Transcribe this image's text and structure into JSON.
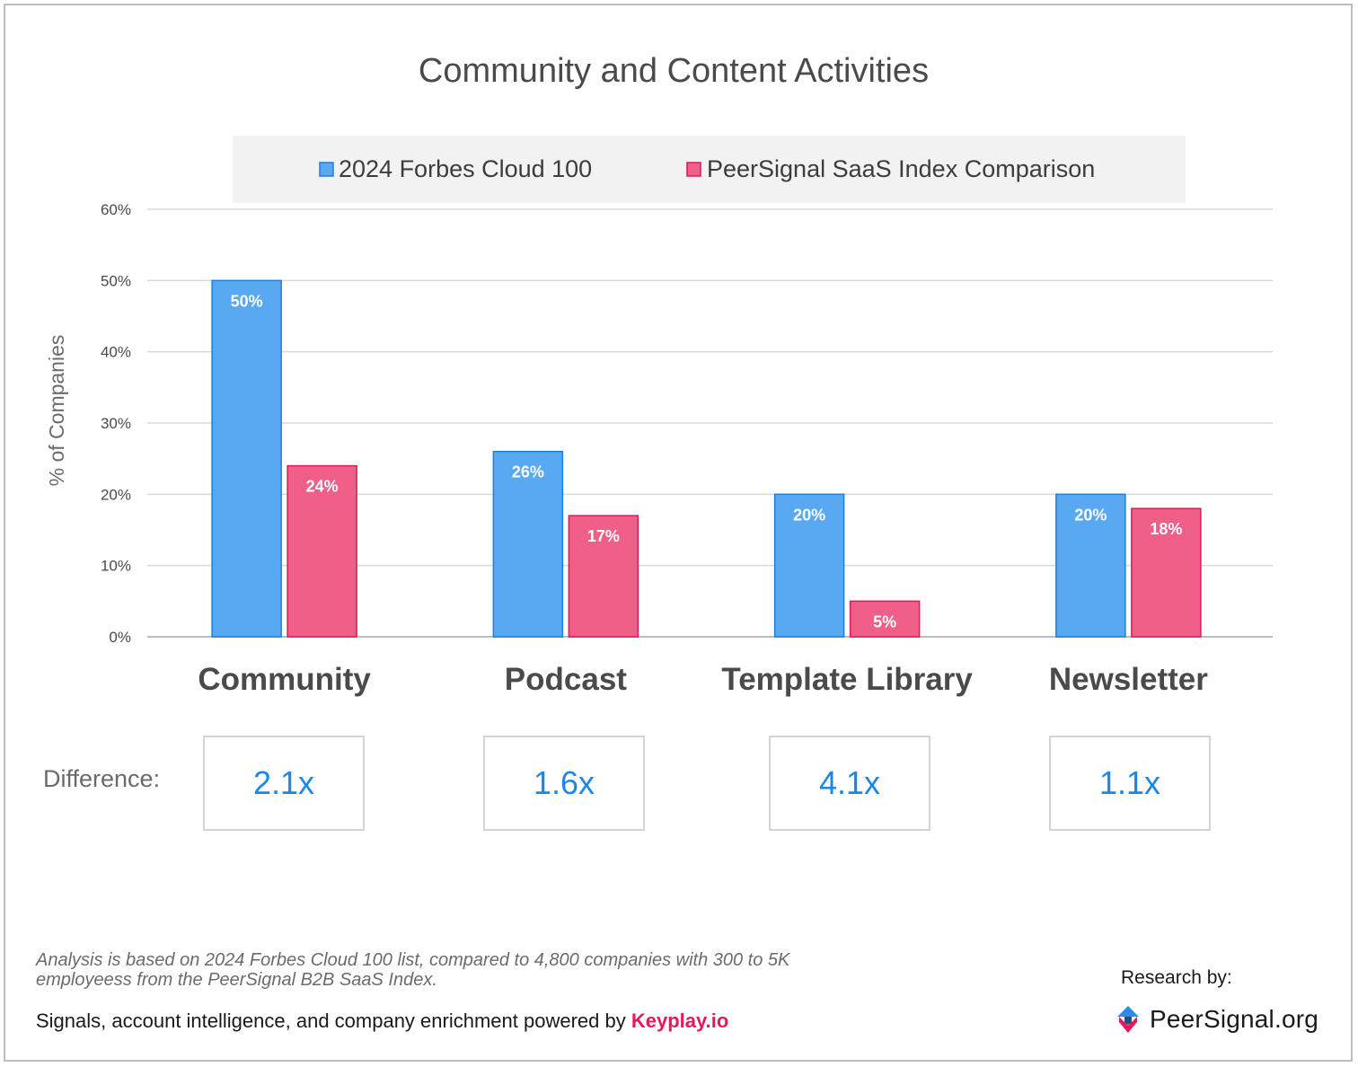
{
  "chart_data": {
    "type": "bar",
    "title": "Community and Content Activities",
    "ylabel": "% of Companies",
    "xlabel": "",
    "categories": [
      "Community",
      "Podcast",
      "Template Library",
      "Newsletter"
    ],
    "series": [
      {
        "name": "2024 Forbes Cloud 100",
        "values": [
          50,
          26,
          20,
          20
        ],
        "color": "#59a9f2",
        "stroke": "#1a7fe0"
      },
      {
        "name": "PeerSignal SaaS Index Comparison",
        "values": [
          24,
          17,
          5,
          18
        ],
        "color": "#ef5f88",
        "stroke": "#d81b5a"
      }
    ],
    "ylim": [
      0,
      60
    ],
    "yticks": [
      0,
      10,
      20,
      30,
      40,
      50,
      60
    ],
    "ytick_labels": [
      "0%",
      "10%",
      "20%",
      "30%",
      "40%",
      "50%",
      "60%"
    ],
    "data_labels": [
      [
        "50%",
        "26%",
        "20%",
        "20%"
      ],
      [
        "24%",
        "17%",
        "5%",
        "18%"
      ]
    ],
    "grid": true,
    "legend": "top"
  },
  "difference": {
    "label": "Difference:",
    "values": [
      "2.1x",
      "1.6x",
      "4.1x",
      "1.1x"
    ]
  },
  "footnote": "Analysis is based on 2024 Forbes Cloud 100 list, compared to 4,800 companies with 300 to 5K employeess from the PeerSignal B2B SaaS Index.",
  "powered_by": {
    "text": "Signals, account intelligence, and company enrichment powered by ",
    "brand": "Keyplay.io"
  },
  "research_by": "Research by:",
  "logo_text": "PeerSignal.org"
}
